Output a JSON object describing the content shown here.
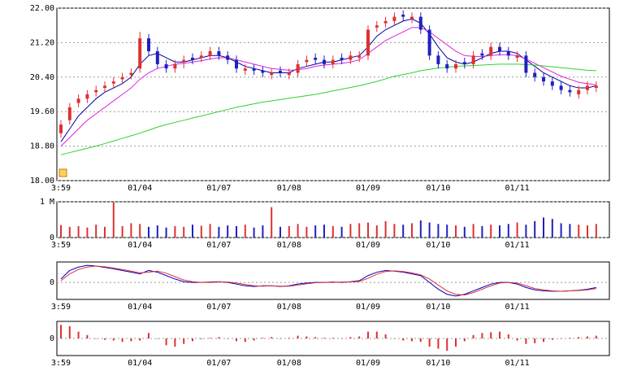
{
  "chart_data": [
    {
      "type": "candlestick",
      "categories": [
        "3:59",
        null,
        null,
        null,
        null,
        null,
        null,
        null,
        null,
        "01/04",
        null,
        null,
        null,
        null,
        null,
        null,
        null,
        null,
        "01/07",
        null,
        null,
        null,
        null,
        null,
        null,
        null,
        "01/08",
        null,
        null,
        null,
        null,
        null,
        null,
        null,
        null,
        "01/09",
        null,
        null,
        null,
        null,
        null,
        null,
        null,
        "01/10",
        null,
        null,
        null,
        null,
        null,
        null,
        null,
        null,
        "01/11",
        null,
        null,
        null,
        null,
        null,
        null,
        null,
        null,
        null
      ],
      "open": [
        19.1,
        19.4,
        19.8,
        19.9,
        20.05,
        20.15,
        20.25,
        20.35,
        20.45,
        20.6,
        21.3,
        21.0,
        20.7,
        20.6,
        20.75,
        20.85,
        20.85,
        20.9,
        21.0,
        20.9,
        20.8,
        20.55,
        20.6,
        20.55,
        20.45,
        20.55,
        20.45,
        20.5,
        20.75,
        20.85,
        20.8,
        20.7,
        20.85,
        20.8,
        20.85,
        20.9,
        21.55,
        21.65,
        21.7,
        21.85,
        21.75,
        21.8,
        21.5,
        20.9,
        20.7,
        20.6,
        20.75,
        20.7,
        20.95,
        20.9,
        21.1,
        21.0,
        20.85,
        20.9,
        20.5,
        20.4,
        20.3,
        20.2,
        20.1,
        20.0,
        20.1,
        20.15
      ],
      "high": [
        19.4,
        19.8,
        20.0,
        20.1,
        20.2,
        20.3,
        20.4,
        20.5,
        20.6,
        21.45,
        21.4,
        21.1,
        20.8,
        20.8,
        20.9,
        20.95,
        21.0,
        21.1,
        21.1,
        21.0,
        20.9,
        20.7,
        20.7,
        20.65,
        20.6,
        20.65,
        20.6,
        20.8,
        20.9,
        20.95,
        20.9,
        20.9,
        20.95,
        21.0,
        21.0,
        21.6,
        21.7,
        21.8,
        21.9,
        21.95,
        21.9,
        21.9,
        21.6,
        21.0,
        20.8,
        20.8,
        20.85,
        21.0,
        21.05,
        21.2,
        21.2,
        21.1,
        21.0,
        21.0,
        20.6,
        20.5,
        20.4,
        20.3,
        20.2,
        20.2,
        20.3,
        20.3
      ],
      "low": [
        19.0,
        19.3,
        19.7,
        19.8,
        19.95,
        20.05,
        20.15,
        20.25,
        20.35,
        20.5,
        20.9,
        20.6,
        20.5,
        20.5,
        20.6,
        20.7,
        20.75,
        20.8,
        20.8,
        20.7,
        20.5,
        20.45,
        20.45,
        20.4,
        20.35,
        20.4,
        20.35,
        20.4,
        20.65,
        20.7,
        20.6,
        20.6,
        20.7,
        20.7,
        20.75,
        20.8,
        21.45,
        21.55,
        21.6,
        21.7,
        21.65,
        21.4,
        20.8,
        20.6,
        20.5,
        20.5,
        20.6,
        20.6,
        20.8,
        20.8,
        20.9,
        20.8,
        20.75,
        20.4,
        20.3,
        20.2,
        20.1,
        20.0,
        19.95,
        19.9,
        20.0,
        20.05
      ],
      "close": [
        19.3,
        19.7,
        19.9,
        20.0,
        20.1,
        20.2,
        20.3,
        20.4,
        20.5,
        21.3,
        21.0,
        20.7,
        20.6,
        20.7,
        20.8,
        20.8,
        20.9,
        21.0,
        20.9,
        20.8,
        20.6,
        20.6,
        20.55,
        20.5,
        20.5,
        20.5,
        20.5,
        20.7,
        20.8,
        20.8,
        20.7,
        20.8,
        20.8,
        20.9,
        20.9,
        21.5,
        21.6,
        21.7,
        21.8,
        21.8,
        21.8,
        21.5,
        20.9,
        20.7,
        20.6,
        20.7,
        20.7,
        20.9,
        20.9,
        21.1,
        21.0,
        20.9,
        20.9,
        20.5,
        20.4,
        20.3,
        20.2,
        20.1,
        20.05,
        20.1,
        20.2,
        20.2
      ],
      "up_color": "#e03030",
      "down_color": "#2020c0",
      "series": [
        {
          "color": "#0000a0",
          "values": [
            18.9,
            19.2,
            19.5,
            19.7,
            19.9,
            20.05,
            20.15,
            20.25,
            20.4,
            20.7,
            20.9,
            20.95,
            20.85,
            20.75,
            20.75,
            20.8,
            20.85,
            20.9,
            20.9,
            20.85,
            20.75,
            20.65,
            20.6,
            20.55,
            20.5,
            20.5,
            20.5,
            20.6,
            20.65,
            20.7,
            20.75,
            20.75,
            20.8,
            20.85,
            20.9,
            21.1,
            21.35,
            21.5,
            21.6,
            21.7,
            21.75,
            21.65,
            21.4,
            21.1,
            20.85,
            20.75,
            20.7,
            20.75,
            20.85,
            20.95,
            21.0,
            21.0,
            20.95,
            20.8,
            20.65,
            20.5,
            20.4,
            20.3,
            20.2,
            20.15,
            20.15,
            20.2
          ]
        },
        {
          "color": "#e020e0",
          "values": [
            18.8,
            19.0,
            19.2,
            19.4,
            19.55,
            19.7,
            19.85,
            20.0,
            20.15,
            20.35,
            20.5,
            20.6,
            20.65,
            20.7,
            20.72,
            20.75,
            20.78,
            20.82,
            20.85,
            20.85,
            20.8,
            20.75,
            20.7,
            20.65,
            20.6,
            20.58,
            20.56,
            20.57,
            20.6,
            20.65,
            20.68,
            20.7,
            20.72,
            20.75,
            20.8,
            20.95,
            21.1,
            21.25,
            21.35,
            21.45,
            21.55,
            21.55,
            21.45,
            21.3,
            21.15,
            21.0,
            20.9,
            20.88,
            20.88,
            20.9,
            20.92,
            20.92,
            20.9,
            20.82,
            20.72,
            20.62,
            20.52,
            20.42,
            20.35,
            20.28,
            20.25,
            20.22
          ]
        },
        {
          "color": "#30d030",
          "values": [
            18.6,
            18.65,
            18.7,
            18.75,
            18.8,
            18.86,
            18.92,
            18.98,
            19.04,
            19.1,
            19.17,
            19.24,
            19.3,
            19.35,
            19.4,
            19.45,
            19.5,
            19.55,
            19.6,
            19.65,
            19.7,
            19.74,
            19.78,
            19.82,
            19.85,
            19.88,
            19.91,
            19.94,
            19.97,
            20.0,
            20.04,
            20.08,
            20.12,
            20.16,
            20.2,
            20.25,
            20.3,
            20.36,
            20.42,
            20.46,
            20.5,
            20.55,
            20.58,
            20.61,
            20.63,
            20.65,
            20.66,
            20.67,
            20.68,
            20.69,
            20.7,
            20.7,
            20.7,
            20.69,
            20.68,
            20.66,
            20.64,
            20.62,
            20.6,
            20.58,
            20.56,
            20.55
          ]
        }
      ],
      "ylim": [
        18,
        22
      ],
      "yticks": [
        {
          "value": 18,
          "label": "18.00"
        },
        {
          "value": 18.8,
          "label": "18.80"
        },
        {
          "value": 19.6,
          "label": "19.60"
        },
        {
          "value": 20.4,
          "label": "20.40"
        },
        {
          "value": 21.2,
          "label": "21.20"
        },
        {
          "value": 22,
          "label": "22.00"
        }
      ],
      "grid": true
    },
    {
      "type": "volume",
      "values": [
        350000,
        300000,
        320000,
        280000,
        360000,
        300000,
        980000,
        320000,
        400000,
        380000,
        300000,
        340000,
        280000,
        320000,
        300000,
        360000,
        330000,
        380000,
        300000,
        340000,
        320000,
        360000,
        280000,
        340000,
        850000,
        300000,
        320000,
        380000,
        300000,
        340000,
        360000,
        320000,
        300000,
        380000,
        400000,
        420000,
        340000,
        460000,
        380000,
        360000,
        400000,
        480000,
        420000,
        380000,
        360000,
        340000,
        300000,
        380000,
        320000,
        360000,
        340000,
        380000,
        420000,
        360000,
        460000,
        560000,
        520000,
        400000,
        380000,
        360000,
        340000,
        380000
      ],
      "ylim": [
        0,
        1000000
      ],
      "yticks": [
        0,
        {
          "value": 1000000,
          "label": "1 M"
        }
      ],
      "grid": true
    },
    {
      "type": "line",
      "series": [
        {
          "color": "#0000c0",
          "values": [
            0.1,
            0.35,
            0.45,
            0.5,
            0.48,
            0.44,
            0.4,
            0.35,
            0.3,
            0.25,
            0.35,
            0.3,
            0.2,
            0.1,
            0.02,
            0.0,
            0.0,
            0.01,
            0.02,
            0.0,
            -0.05,
            -0.1,
            -0.12,
            -0.1,
            -0.1,
            -0.12,
            -0.1,
            -0.05,
            -0.02,
            0.0,
            0.0,
            0.01,
            0.0,
            0.02,
            0.05,
            0.2,
            0.3,
            0.35,
            0.33,
            0.3,
            0.25,
            0.2,
            0.0,
            -0.2,
            -0.35,
            -0.4,
            -0.35,
            -0.25,
            -0.15,
            -0.05,
            0.0,
            0.0,
            -0.05,
            -0.15,
            -0.22,
            -0.25,
            -0.26,
            -0.26,
            -0.25,
            -0.23,
            -0.2,
            -0.15
          ]
        },
        {
          "color": "#e03030",
          "values": [
            0.05,
            0.25,
            0.38,
            0.45,
            0.48,
            0.46,
            0.42,
            0.38,
            0.33,
            0.28,
            0.3,
            0.33,
            0.27,
            0.17,
            0.07,
            0.02,
            0.0,
            0.0,
            0.01,
            0.01,
            -0.02,
            -0.06,
            -0.1,
            -0.11,
            -0.1,
            -0.11,
            -0.11,
            -0.08,
            -0.04,
            -0.01,
            0.0,
            0.0,
            0.01,
            0.01,
            0.03,
            0.12,
            0.24,
            0.32,
            0.34,
            0.32,
            0.28,
            0.22,
            0.1,
            -0.08,
            -0.25,
            -0.35,
            -0.37,
            -0.3,
            -0.2,
            -0.1,
            -0.02,
            0.0,
            -0.02,
            -0.1,
            -0.18,
            -0.22,
            -0.25,
            -0.26,
            -0.25,
            -0.24,
            -0.22,
            -0.18
          ]
        }
      ],
      "ylim": [
        -0.5,
        0.6
      ],
      "yticks": [
        0
      ],
      "grid": true
    },
    {
      "type": "bar",
      "color": "#e03030",
      "values": [
        0.2,
        0.18,
        0.1,
        0.05,
        0.0,
        -0.02,
        -0.03,
        -0.05,
        -0.04,
        -0.03,
        0.08,
        0.0,
        -0.1,
        -0.12,
        -0.08,
        -0.04,
        -0.01,
        0.01,
        0.02,
        0.0,
        -0.04,
        -0.05,
        -0.03,
        0.01,
        0.02,
        0.0,
        0.01,
        0.04,
        0.03,
        0.02,
        0.01,
        0.01,
        0.0,
        0.02,
        0.03,
        0.1,
        0.1,
        0.06,
        0.0,
        -0.03,
        -0.04,
        -0.05,
        -0.12,
        -0.15,
        -0.18,
        -0.12,
        -0.04,
        0.05,
        0.08,
        0.09,
        0.1,
        0.06,
        -0.03,
        -0.08,
        -0.07,
        -0.05,
        -0.02,
        0.0,
        0.01,
        0.02,
        0.03,
        0.04
      ],
      "ylim": [
        -0.25,
        0.25
      ],
      "yticks": [
        0
      ],
      "grid": true
    }
  ]
}
